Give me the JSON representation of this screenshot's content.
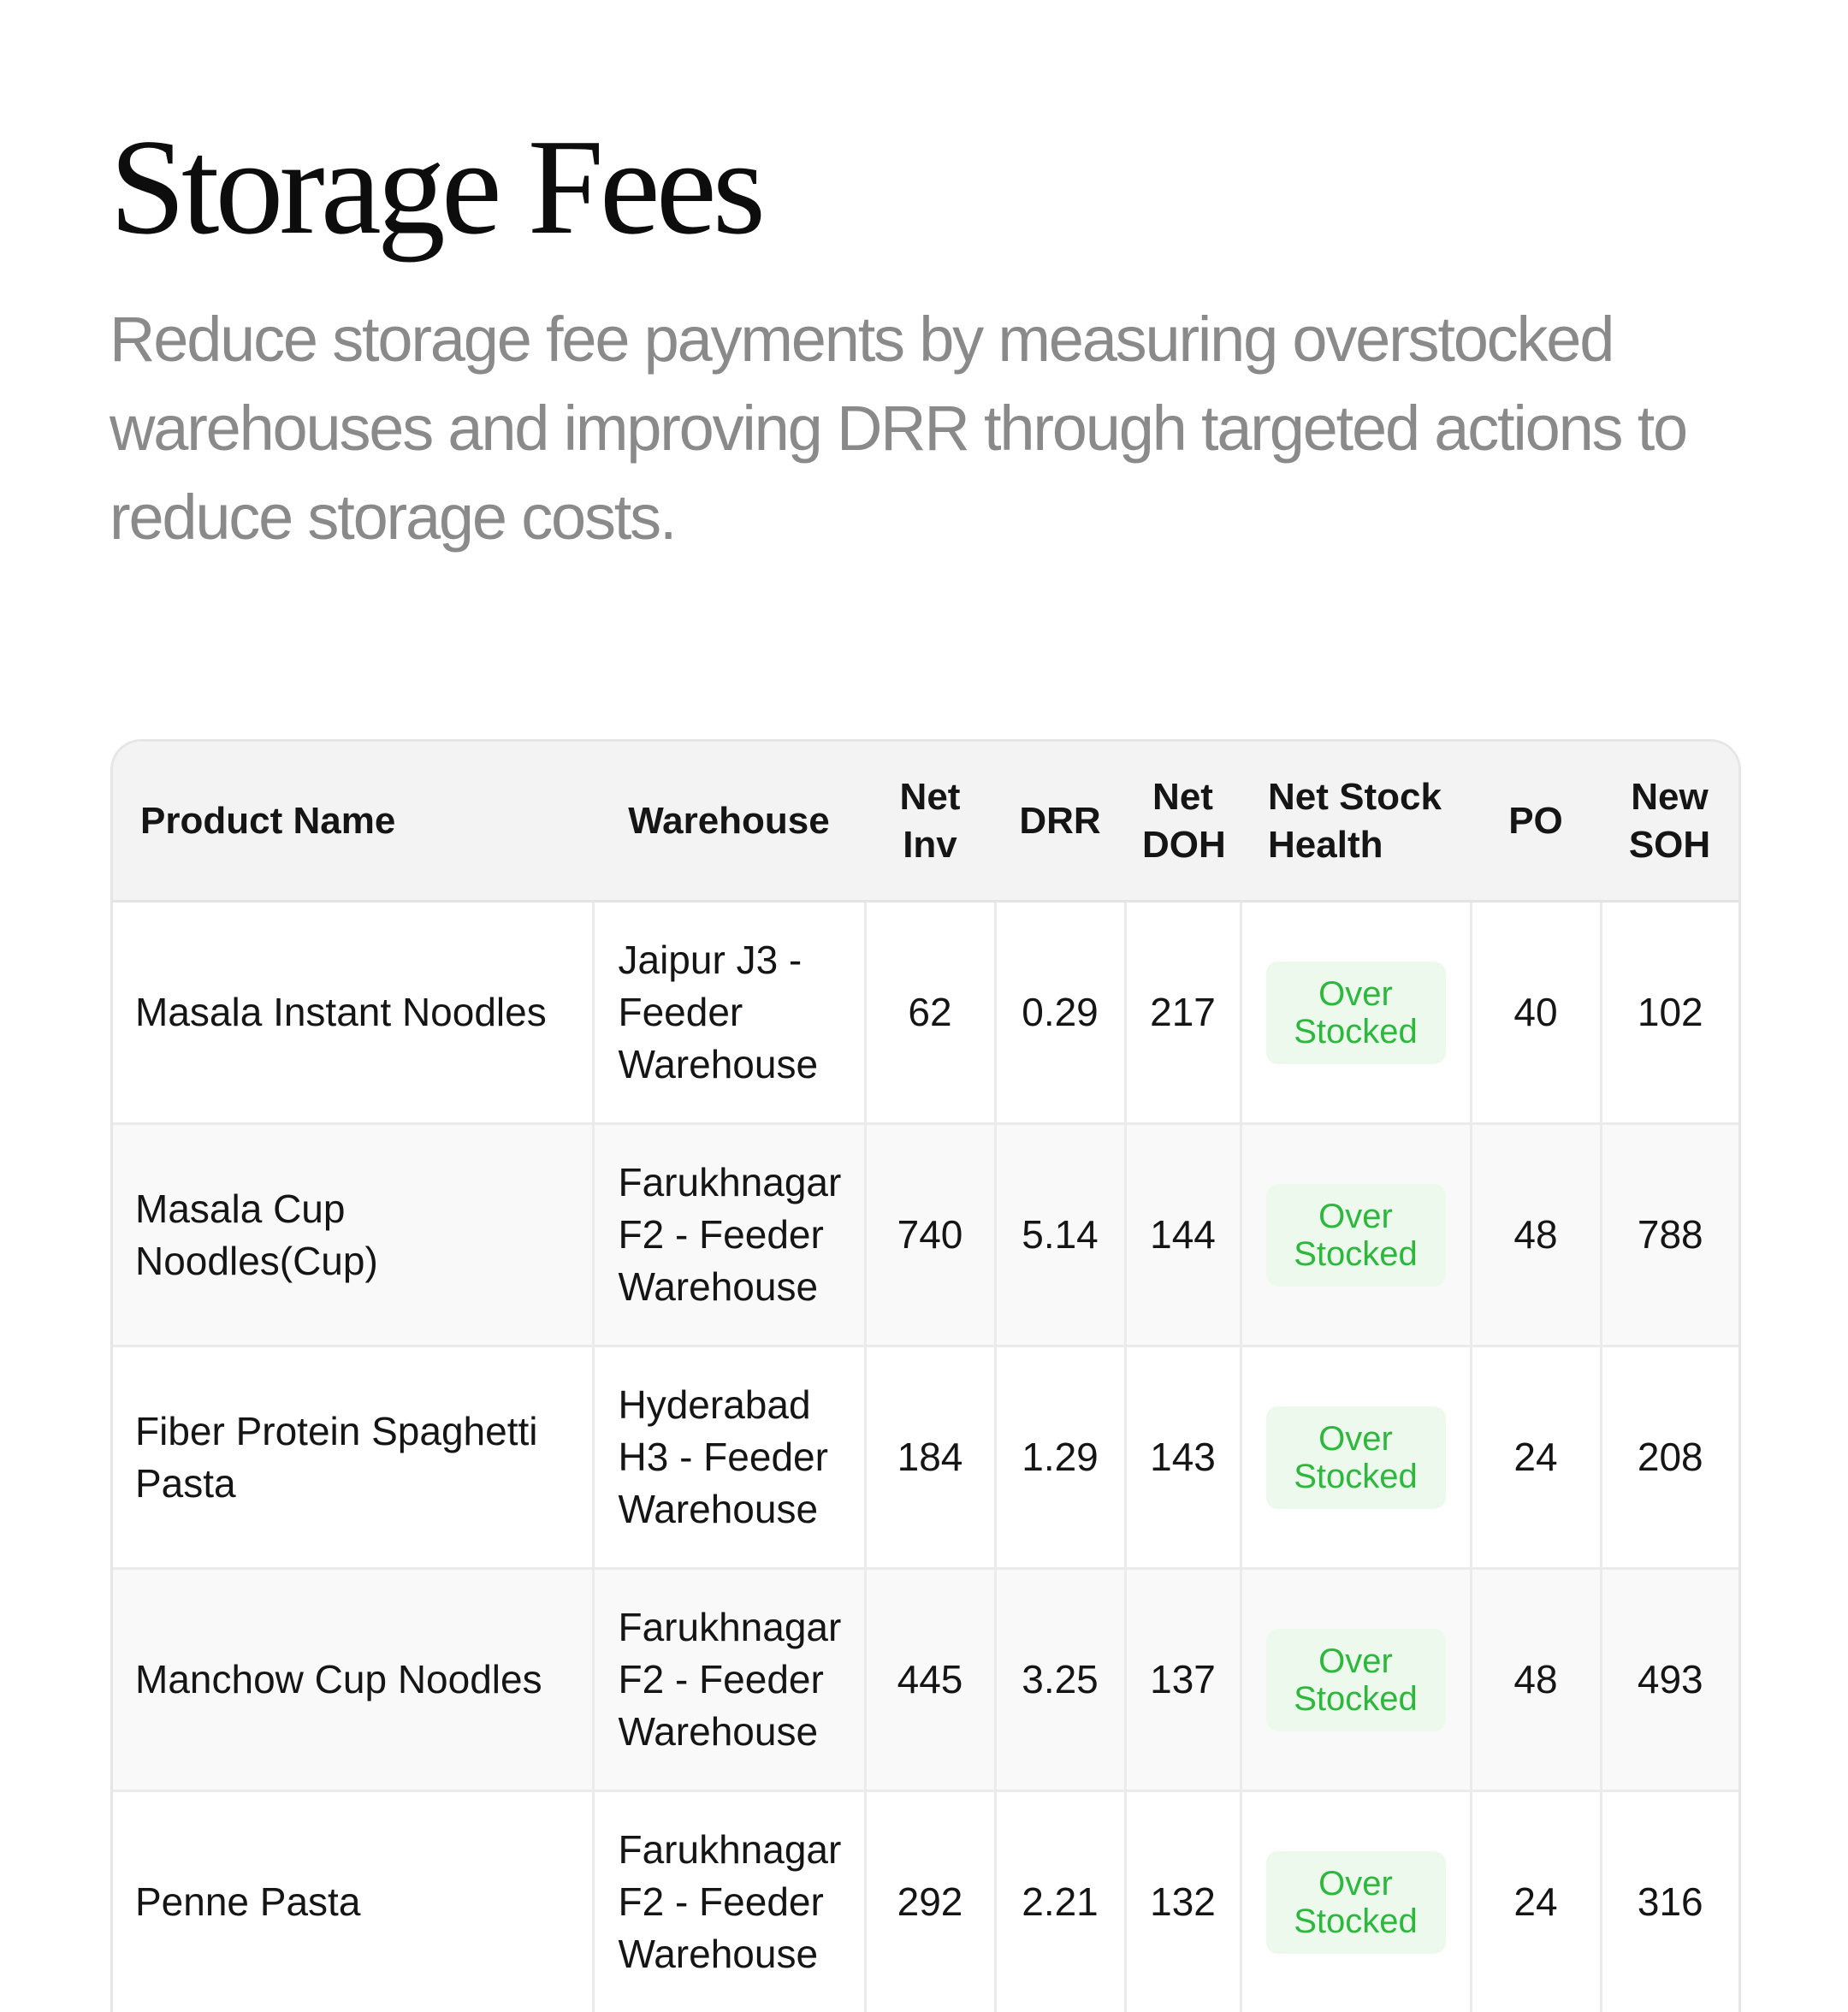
{
  "header": {
    "title": "Storage Fees",
    "subtitle": "Reduce storage fee payments by measuring overstocked warehouses and improving DRR through targeted actions to reduce storage costs."
  },
  "table": {
    "columns": {
      "product_name": "Product Name",
      "warehouse": "Warehouse",
      "net_inv": [
        "Net",
        "Inv"
      ],
      "drr": "DRR",
      "net_doh": [
        "Net",
        "DOH"
      ],
      "net_stock_health": [
        "Net Stock",
        "Health"
      ],
      "po": "PO",
      "new_soh": [
        "New",
        "SOH"
      ]
    },
    "rows": [
      {
        "product": "Masala Instant Noodles",
        "warehouse": "Jaipur J3 - Feeder Warehouse",
        "net_inv": "62",
        "drr": "0.29",
        "net_doh": "217",
        "health": [
          "Over",
          "Stocked"
        ],
        "po": "40",
        "new_soh": "102"
      },
      {
        "product": "Masala Cup Noodles(Cup)",
        "warehouse": "Farukhnagar F2 - Feeder Warehouse",
        "net_inv": "740",
        "drr": "5.14",
        "net_doh": "144",
        "health": [
          "Over",
          "Stocked"
        ],
        "po": "48",
        "new_soh": "788"
      },
      {
        "product": "Fiber Protein Spaghetti Pasta",
        "warehouse": "Hyderabad H3 - Feeder Warehouse",
        "net_inv": "184",
        "drr": "1.29",
        "net_doh": "143",
        "health": [
          "Over",
          "Stocked"
        ],
        "po": "24",
        "new_soh": "208"
      },
      {
        "product": "Manchow Cup Noodles",
        "warehouse": "Farukhnagar F2 - Feeder Warehouse",
        "net_inv": "445",
        "drr": "3.25",
        "net_doh": "137",
        "health": [
          "Over",
          "Stocked"
        ],
        "po": "48",
        "new_soh": "493"
      },
      {
        "product": "Penne Pasta",
        "warehouse": "Farukhnagar F2 - Feeder Warehouse",
        "net_inv": "292",
        "drr": "2.21",
        "net_doh": "132",
        "health": [
          "Over",
          "Stocked"
        ],
        "po": "24",
        "new_soh": "316"
      }
    ]
  },
  "colors": {
    "title": "#0d0d0d",
    "subtitle": "#8a8a8a",
    "header_bg": "#f3f3f3",
    "badge_bg": "#ecf9ec",
    "badge_text": "#2db83d"
  }
}
